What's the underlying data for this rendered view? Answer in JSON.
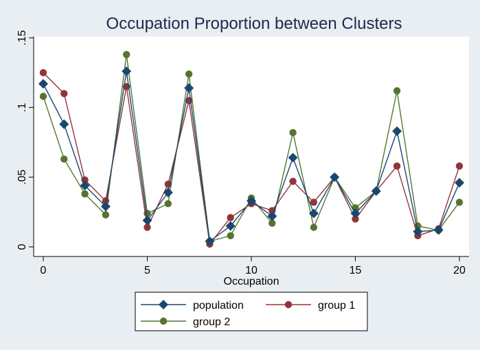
{
  "chart_data": {
    "type": "line",
    "title": "Occupation Proportion between Clusters",
    "xlabel": "Occupation",
    "ylabel": "",
    "xlim": [
      0,
      20
    ],
    "ylim": [
      0,
      0.15
    ],
    "x_ticks": [
      0,
      5,
      10,
      15,
      20
    ],
    "x_tick_labels": [
      "0",
      "5",
      "10",
      "15",
      "20"
    ],
    "y_ticks": [
      0,
      0.05,
      0.1,
      0.15
    ],
    "y_tick_labels": [
      "0",
      ".05",
      ".1",
      ".15"
    ],
    "grid": false,
    "legend_position": "bottom",
    "x": [
      0,
      1,
      2,
      3,
      4,
      5,
      6,
      7,
      8,
      9,
      10,
      11,
      12,
      13,
      14,
      15,
      16,
      17,
      18,
      19,
      20
    ],
    "series": [
      {
        "name": "population",
        "color": "#1a476f",
        "marker": "diamond",
        "values": [
          0.117,
          0.088,
          0.044,
          0.029,
          0.126,
          0.019,
          0.039,
          0.114,
          0.004,
          0.015,
          0.033,
          0.022,
          0.064,
          0.024,
          0.05,
          0.024,
          0.04,
          0.083,
          0.011,
          0.012,
          0.046
        ]
      },
      {
        "name": "group 1",
        "color": "#90353b",
        "marker": "circle",
        "values": [
          0.125,
          0.11,
          0.048,
          0.033,
          0.115,
          0.014,
          0.045,
          0.105,
          0.002,
          0.021,
          0.031,
          0.026,
          0.047,
          0.032,
          0.05,
          0.02,
          0.04,
          0.058,
          0.008,
          0.013,
          0.058
        ]
      },
      {
        "name": "group 2",
        "color": "#55752f",
        "marker": "circle",
        "values": [
          0.108,
          0.063,
          0.038,
          0.023,
          0.138,
          0.024,
          0.031,
          0.124,
          0.004,
          0.008,
          0.035,
          0.017,
          0.082,
          0.014,
          0.05,
          0.028,
          0.04,
          0.112,
          0.015,
          0.012,
          0.032
        ]
      }
    ]
  }
}
